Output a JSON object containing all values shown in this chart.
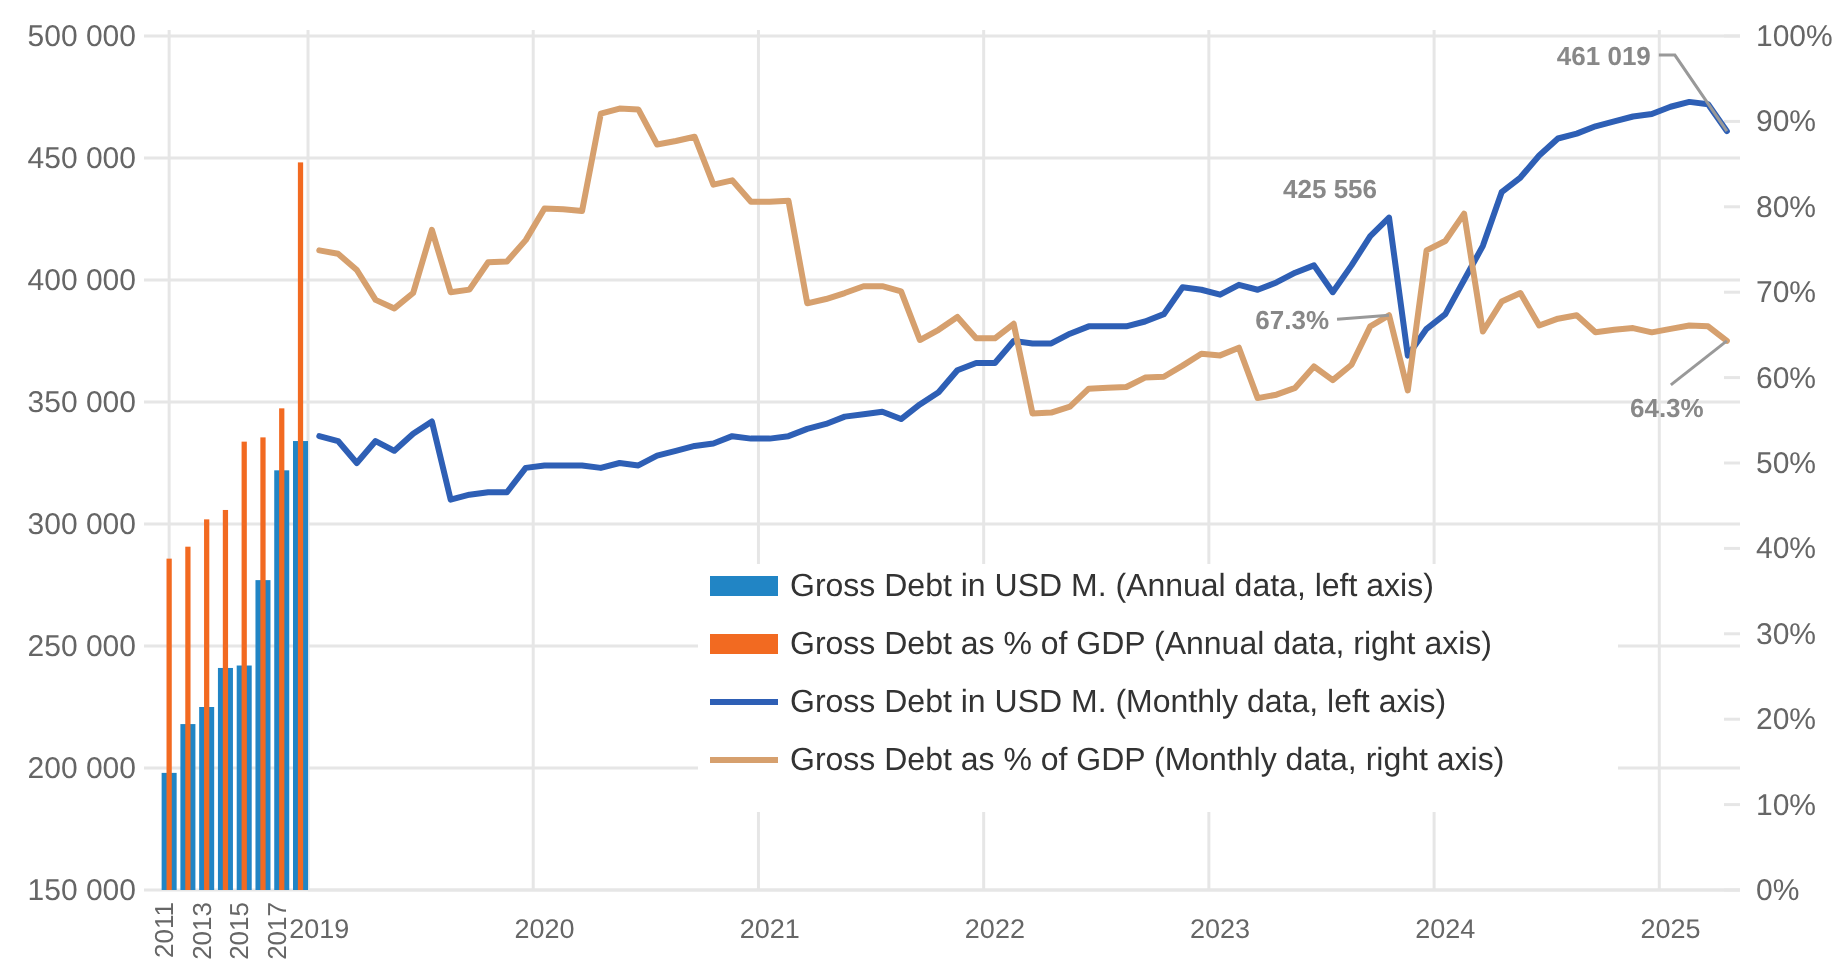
{
  "chart_data": {
    "type": "bar",
    "categories": [
      "2011",
      null,
      "2013",
      null,
      "2015",
      null,
      "2017",
      null,
      "2019",
      null,
      null,
      null,
      null,
      null,
      null,
      null,
      null,
      null,
      null,
      null,
      "2020",
      null,
      null,
      null,
      null,
      null,
      null,
      null,
      null,
      null,
      null,
      null,
      "2021",
      null,
      null,
      null,
      null,
      null,
      null,
      null,
      null,
      null,
      null,
      null,
      "2022",
      null,
      null,
      null,
      null,
      null,
      null,
      null,
      null,
      null,
      null,
      null,
      "2023",
      null,
      null,
      null,
      null,
      null,
      null,
      null,
      null,
      null,
      null,
      null,
      "2024",
      null,
      null,
      null,
      null,
      null,
      null,
      null,
      null,
      null,
      null,
      null,
      "2025",
      null,
      null,
      null
    ],
    "series": [
      {
        "name": "Gross Debt in USD M. (Annual data, left axis)",
        "color": "#2185c5",
        "values": [
          198000,
          218000,
          225000,
          241000,
          242000,
          277000,
          322000,
          334000,
          null,
          null,
          null,
          null,
          null,
          null,
          null,
          null,
          null,
          null,
          null,
          null,
          null,
          null,
          null,
          null,
          null,
          null,
          null,
          null,
          null,
          null,
          null,
          null,
          null,
          null,
          null,
          null,
          null,
          null,
          null,
          null,
          null,
          null,
          null,
          null,
          null,
          null,
          null,
          null,
          null,
          null,
          null,
          null,
          null,
          null,
          null,
          null,
          null,
          null,
          null,
          null,
          null,
          null,
          null,
          null,
          null,
          null,
          null,
          null,
          null,
          null,
          null,
          null,
          null,
          null,
          null,
          null,
          null,
          null,
          null,
          null,
          null,
          null,
          null,
          null
        ]
      },
      {
        "name": "Gross Debt as % of GDP (Annual data, right axis)",
        "color": "#f26a21",
        "axis": "y2",
        "values": [
          38.8,
          40.2,
          43.4,
          44.5,
          52.5,
          53.0,
          56.4,
          85.2,
          null,
          null,
          null,
          null,
          null,
          null,
          null,
          null,
          null,
          null,
          null,
          null,
          null,
          null,
          null,
          null,
          null,
          null,
          null,
          null,
          null,
          null,
          null,
          null,
          null,
          null,
          null,
          null,
          null,
          null,
          null,
          null,
          null,
          null,
          null,
          null,
          null,
          null,
          null,
          null,
          null,
          null,
          null,
          null,
          null,
          null,
          null,
          null,
          null,
          null,
          null,
          null,
          null,
          null,
          null,
          null,
          null,
          null,
          null,
          null,
          null,
          null,
          null,
          null,
          null,
          null,
          null,
          null,
          null,
          null,
          null,
          null,
          null,
          null,
          null,
          null
        ]
      },
      {
        "type": "line",
        "name": "Gross Debt in USD M. (Monthly data, left axis)",
        "color": "#2e5fb5",
        "values": [
          null,
          null,
          null,
          null,
          null,
          null,
          null,
          null,
          336000,
          334000,
          325000,
          334000,
          330000,
          337000,
          342000,
          310000,
          312000,
          313000,
          313000,
          323000,
          324000,
          324000,
          324000,
          323000,
          325000,
          324000,
          328000,
          330000,
          332000,
          333000,
          336000,
          335000,
          335000,
          336000,
          339000,
          341000,
          344000,
          345000,
          346000,
          343000,
          349000,
          354000,
          363000,
          366000,
          366000,
          375000,
          374000,
          374000,
          378000,
          381000,
          381000,
          381000,
          383000,
          386000,
          397000,
          396000,
          394000,
          398000,
          396000,
          399000,
          403000,
          406000,
          395000,
          406000,
          418000,
          425556,
          369000,
          380000,
          386000,
          400000,
          414000,
          436000,
          442000,
          451000,
          458000,
          460000,
          463000,
          465000,
          467000,
          468000,
          471000,
          473000,
          472000,
          461019
        ],
        "value_labels": [
          null,
          null,
          null,
          null,
          null,
          null,
          null,
          null,
          null,
          null,
          null,
          null,
          null,
          null,
          null,
          null,
          null,
          null,
          null,
          null,
          null,
          null,
          null,
          null,
          null,
          null,
          null,
          null,
          null,
          null,
          null,
          null,
          null,
          null,
          null,
          null,
          null,
          null,
          null,
          null,
          null,
          null,
          null,
          null,
          null,
          null,
          null,
          null,
          null,
          null,
          null,
          null,
          null,
          null,
          null,
          null,
          null,
          null,
          null,
          null,
          null,
          null,
          null,
          null,
          null,
          "425 556",
          null,
          null,
          null,
          null,
          null,
          null,
          null,
          null,
          null,
          null,
          null,
          null,
          null,
          null,
          null,
          null,
          null,
          "461 019"
        ]
      },
      {
        "type": "line",
        "name": "Gross Debt as % of GDP (Monthly data, right axis)",
        "color": "#d6a06e",
        "axis": "y2",
        "values": [
          null,
          null,
          null,
          null,
          null,
          null,
          null,
          null,
          74.9,
          74.5,
          72.6,
          69.1,
          68.1,
          69.9,
          77.3,
          70.0,
          70.3,
          73.5,
          73.6,
          76.1,
          79.8,
          79.7,
          79.5,
          90.9,
          91.5,
          91.4,
          87.3,
          87.7,
          88.2,
          82.6,
          83.1,
          80.6,
          80.6,
          80.7,
          68.7,
          69.2,
          69.9,
          70.7,
          70.7,
          70.1,
          64.4,
          65.6,
          67.1,
          64.6,
          64.6,
          66.3,
          55.8,
          55.9,
          56.6,
          58.7,
          58.8,
          58.9,
          60.0,
          60.1,
          61.4,
          62.8,
          62.6,
          63.5,
          57.6,
          58.0,
          58.8,
          61.3,
          59.7,
          61.5,
          66.0,
          67.3,
          58.5,
          74.9,
          76.0,
          79.2,
          65.4,
          68.9,
          69.9,
          66.1,
          66.9,
          67.3,
          65.3,
          65.6,
          65.8,
          65.3,
          65.7,
          66.1,
          66.0,
          64.3
        ],
        "value_labels": [
          null,
          null,
          null,
          null,
          null,
          null,
          null,
          null,
          null,
          null,
          null,
          null,
          null,
          null,
          null,
          null,
          null,
          null,
          null,
          null,
          null,
          null,
          null,
          null,
          null,
          null,
          null,
          null,
          null,
          null,
          null,
          null,
          null,
          null,
          null,
          null,
          null,
          null,
          null,
          null,
          null,
          null,
          null,
          null,
          null,
          null,
          null,
          null,
          null,
          null,
          null,
          null,
          null,
          null,
          null,
          null,
          null,
          null,
          null,
          null,
          null,
          null,
          null,
          null,
          null,
          "67.3%",
          null,
          null,
          null,
          null,
          null,
          null,
          null,
          null,
          null,
          null,
          null,
          null,
          null,
          null,
          null,
          null,
          null,
          "64.3%"
        ]
      }
    ],
    "ylim": [
      150000,
      500000
    ],
    "yticks": [
      {
        "value": 150000,
        "label": "150 000"
      },
      {
        "value": 200000,
        "label": "200 000"
      },
      {
        "value": 250000,
        "label": "250 000"
      },
      {
        "value": 300000,
        "label": "300 000"
      },
      {
        "value": 350000,
        "label": "350 000"
      },
      {
        "value": 400000,
        "label": "400 000"
      },
      {
        "value": 450000,
        "label": "450 000"
      },
      {
        "value": 500000,
        "label": "500 000"
      }
    ],
    "y2lim": [
      0,
      100
    ],
    "y2ticks": [
      {
        "value": 0,
        "label": "0%"
      },
      {
        "value": 10,
        "label": "10%"
      },
      {
        "value": 20,
        "label": "20%"
      },
      {
        "value": 30,
        "label": "30%"
      },
      {
        "value": 40,
        "label": "40%"
      },
      {
        "value": 50,
        "label": "50%"
      },
      {
        "value": 60,
        "label": "60%"
      },
      {
        "value": 70,
        "label": "70%"
      },
      {
        "value": 80,
        "label": "80%"
      },
      {
        "value": 90,
        "label": "90%"
      },
      {
        "value": 100,
        "label": "100%"
      }
    ],
    "grid": true,
    "legend": "bottom right"
  }
}
